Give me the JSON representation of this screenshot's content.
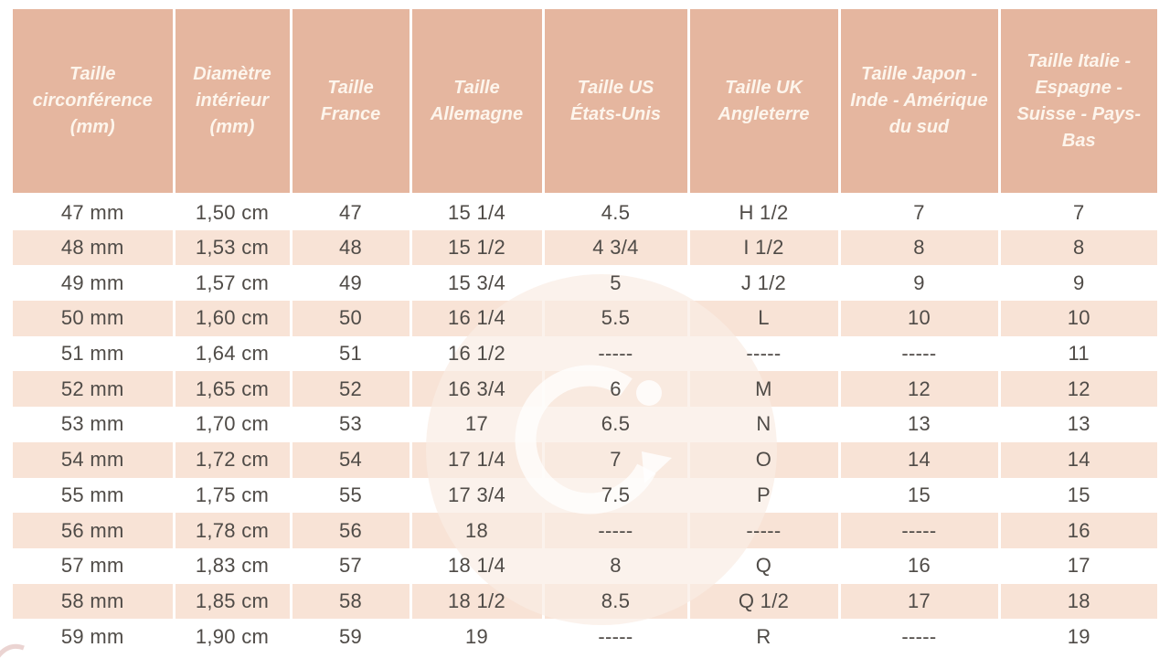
{
  "chart_data": {
    "type": "table",
    "title": "",
    "columns": [
      "Taille circonférence (mm)",
      "Diamètre intérieur (mm)",
      "Taille France",
      "Taille Allemagne",
      "Taille US États-Unis",
      "Taille UK Angleterre",
      "Taille Japon - Inde - Amérique du sud",
      "Taille Italie - Espagne - Suisse - Pays-Bas"
    ],
    "rows": [
      [
        "47 mm",
        "1,50 cm",
        "47",
        "15 1/4",
        "4.5",
        "H 1/2",
        "7",
        "7"
      ],
      [
        "48 mm",
        "1,53 cm",
        "48",
        "15 1/2",
        "4 3/4",
        "I 1/2",
        "8",
        "8"
      ],
      [
        "49 mm",
        "1,57 cm",
        "49",
        "15 3/4",
        "5",
        "J 1/2",
        "9",
        "9"
      ],
      [
        "50 mm",
        "1,60 cm",
        "50",
        "16 1/4",
        "5.5",
        "L",
        "10",
        "10"
      ],
      [
        "51 mm",
        "1,64 cm",
        "51",
        "16 1/2",
        "-----",
        "-----",
        "-----",
        "11"
      ],
      [
        "52 mm",
        "1,65 cm",
        "52",
        "16 3/4",
        "6",
        "M",
        "12",
        "12"
      ],
      [
        "53 mm",
        "1,70 cm",
        "53",
        "17",
        "6.5",
        "N",
        "13",
        "13"
      ],
      [
        "54 mm",
        "1,72 cm",
        "54",
        "17 1/4",
        "7",
        "O",
        "14",
        "14"
      ],
      [
        "55 mm",
        "1,75 cm",
        "55",
        "17 3/4",
        "7.5",
        "P",
        "15",
        "15"
      ],
      [
        "56 mm",
        "1,78 cm",
        "56",
        "18",
        "-----",
        "-----",
        "-----",
        "16"
      ],
      [
        "57 mm",
        "1,83 cm",
        "57",
        "18 1/4",
        "8",
        "Q",
        "16",
        "17"
      ],
      [
        "58 mm",
        "1,85 cm",
        "58",
        "18 1/2",
        "8.5",
        "Q 1/2",
        "17",
        "18"
      ],
      [
        "59 mm",
        "1,90 cm",
        "59",
        "19",
        "-----",
        "R",
        "-----",
        "19"
      ]
    ],
    "layout": {
      "header_row": true,
      "striped": "odd rows white, even rows light pink",
      "watermark": "translucent G logo circle centered behind rows"
    }
  },
  "colors": {
    "header_bg": "#e5b69f",
    "header_text": "#fdf5ec",
    "row_even_bg": "#f8e3d6",
    "row_odd_bg": "#ffffff",
    "body_text": "#4f4b47",
    "separator": "#ffffff",
    "watermark_disc": "#f9ece4",
    "watermark_glyph": "#ffffff"
  }
}
